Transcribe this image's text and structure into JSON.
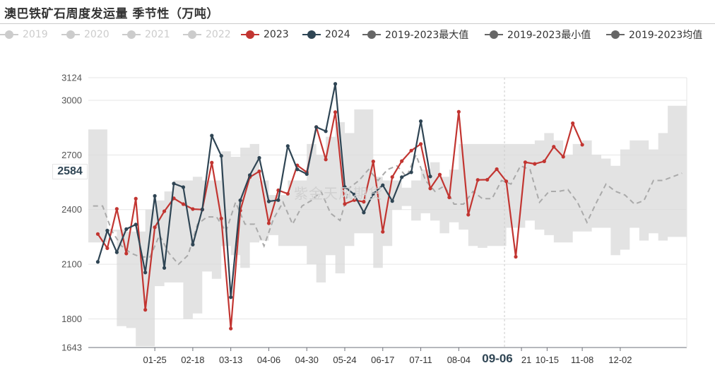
{
  "title": "澳巴铁矿石周度发运量 季节性（万吨）",
  "watermark": "紫金天风期货",
  "legend": [
    {
      "label": "2019",
      "color": "#cccccc",
      "active": false
    },
    {
      "label": "2020",
      "color": "#cccccc",
      "active": false
    },
    {
      "label": "2021",
      "color": "#cccccc",
      "active": false
    },
    {
      "label": "2022",
      "color": "#cccccc",
      "active": false
    },
    {
      "label": "2023",
      "color": "#c23531",
      "active": true
    },
    {
      "label": "2024",
      "color": "#2f4554",
      "active": true
    },
    {
      "label": "2019-2023最大值",
      "color": "#666666",
      "active": true
    },
    {
      "label": "2019-2023最小值",
      "color": "#666666",
      "active": true
    },
    {
      "label": "2019-2023均值",
      "color": "#666666",
      "active": true
    }
  ],
  "pointer": {
    "y_label": "2584",
    "x_label": "09-06"
  },
  "chart_data": {
    "type": "line",
    "y_ticks": [
      1643,
      1800,
      2100,
      2400,
      2700,
      3000,
      3124
    ],
    "ylim": [
      1643,
      3124
    ],
    "x_ticks": [
      "01-25",
      "02-18",
      "03-13",
      "04-06",
      "04-30",
      "05-24",
      "06-17",
      "07-11",
      "08-04",
      "09-06",
      "10-15",
      "11-08",
      "12-02"
    ],
    "x_tick_weeks": [
      7,
      11,
      15,
      19,
      23,
      27,
      31,
      35,
      39,
      45.6,
      48.3,
      52,
      56
    ],
    "grid": true,
    "series": [
      {
        "name": "2023",
        "color": "#c23531",
        "start_week": 1,
        "values": [
          2266,
          2188,
          2404,
          2159,
          2460,
          1850,
          2303,
          2391,
          2462,
          2430,
          2403,
          2400,
          2658,
          2351,
          1747,
          2395,
          2578,
          2610,
          2325,
          2506,
          2487,
          2643,
          2605,
          2853,
          2675,
          2935,
          2431,
          2452,
          2443,
          2664,
          2278,
          2579,
          2666,
          2724,
          2760,
          2516,
          2592,
          2467,
          2937,
          2372,
          2563,
          2564,
          2622,
          2555,
          2141,
          2660,
          2651,
          2665,
          2745,
          2690,
          2874,
          2756
        ]
      },
      {
        "name": "2024",
        "color": "#2f4554",
        "start_week": 1,
        "values": [
          2113,
          2285,
          2166,
          2293,
          2318,
          2055,
          2475,
          2080,
          2543,
          2523,
          2208,
          2401,
          2806,
          2695,
          1919,
          2451,
          2589,
          2684,
          2445,
          2452,
          2749,
          2621,
          2595,
          2853,
          2830,
          3090,
          2524,
          2483,
          2384,
          2487,
          2534,
          2447,
          2578,
          2605,
          2885,
          2582
        ]
      },
      {
        "name": "2019-2023最大值",
        "color": "#d9d9d9",
        "start_week": 0,
        "values": [
          2840,
          2840,
          2290,
          2290,
          2280,
          2280,
          2400,
          2450,
          2500,
          2560,
          2560,
          2580,
          2560,
          2560,
          2720,
          2690,
          2740,
          2760,
          2560,
          2480,
          2480,
          2560,
          2560,
          2760,
          2700,
          2800,
          2880,
          2820,
          2950,
          2950,
          2580,
          2560,
          2560,
          2520,
          2560,
          2620,
          2660,
          2580,
          2620,
          2760,
          2760,
          2760,
          2760,
          2760,
          2760,
          2760,
          2760,
          2780,
          2820,
          2780,
          2700,
          2760,
          2780,
          2700,
          2680,
          2640,
          2730,
          2780,
          2780,
          2730,
          2820,
          2970,
          2970
        ]
      },
      {
        "name": "2019-2023最小值",
        "color": "#d9d9d9",
        "start_week": 0,
        "values": [
          2220,
          2220,
          2280,
          1760,
          1750,
          1650,
          1650,
          1980,
          2000,
          2000,
          1800,
          1830,
          2060,
          2020,
          2200,
          2150,
          2080,
          2220,
          2230,
          2260,
          2200,
          2200,
          2200,
          2100,
          2000,
          2150,
          2050,
          2200,
          2270,
          2270,
          2080,
          2200,
          2400,
          2420,
          2340,
          2380,
          2340,
          2270,
          2330,
          2290,
          2200,
          2190,
          2200,
          2200,
          2300,
          2300,
          2340,
          2290,
          2260,
          2220,
          2220,
          2280,
          2280,
          2300,
          2300,
          2150,
          2180,
          2300,
          2230,
          2270,
          2230,
          2250,
          2250
        ]
      },
      {
        "name": "2019-2023均值",
        "color": "#aaaaaa",
        "start_week": 0,
        "values": [
          2420,
          2420,
          2280,
          2200,
          2160,
          2140,
          2140,
          2260,
          2160,
          2100,
          2150,
          2320,
          2360,
          2360,
          2280,
          2440,
          2320,
          2320,
          2200,
          2350,
          2440,
          2320,
          2420,
          2450,
          2500,
          2380,
          2340,
          2520,
          2560,
          2620,
          2560,
          2620,
          2640,
          2580,
          2700,
          2560,
          2500,
          2530,
          2430,
          2430,
          2500,
          2460,
          2460,
          2560,
          2540,
          2640,
          2620,
          2440,
          2500,
          2500,
          2510,
          2440,
          2330,
          2440,
          2540,
          2500,
          2480,
          2430,
          2450,
          2560,
          2560,
          2580,
          2600
        ]
      }
    ]
  }
}
